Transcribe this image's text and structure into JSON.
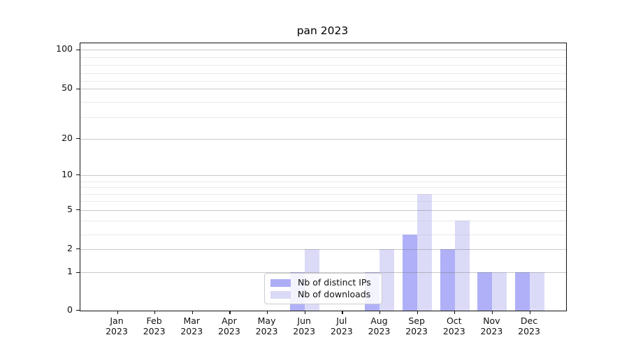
{
  "title": "pan 2023",
  "chart_data": {
    "type": "bar",
    "title": "pan 2023",
    "categories": [
      "Jan 2023",
      "Feb 2023",
      "Mar 2023",
      "Apr 2023",
      "May 2023",
      "Jun 2023",
      "Jul 2023",
      "Aug 2023",
      "Sep 2023",
      "Oct 2023",
      "Nov 2023",
      "Dec 2023"
    ],
    "series": [
      {
        "name": "Nb of distinct IPs",
        "color": "#a9a9f7",
        "values": [
          0,
          0,
          0,
          0,
          0,
          1,
          0,
          1,
          3,
          2,
          1,
          1
        ]
      },
      {
        "name": "Nb of downloads",
        "color": "#d8d8f7",
        "values": [
          0,
          0,
          0,
          0,
          0,
          2,
          0,
          2,
          7,
          4,
          1,
          1
        ]
      }
    ],
    "xlabel": "",
    "ylabel": "",
    "y_axis": {
      "scale": "symlog",
      "major_ticks": [
        0,
        1,
        2,
        5,
        10,
        20,
        50,
        100
      ],
      "minor_ticks": [
        3,
        4,
        6,
        7,
        8,
        9,
        30,
        40,
        60,
        70,
        80,
        90
      ],
      "ylim": [
        0,
        130
      ]
    },
    "grid": "on",
    "legend_position": "lower center"
  }
}
